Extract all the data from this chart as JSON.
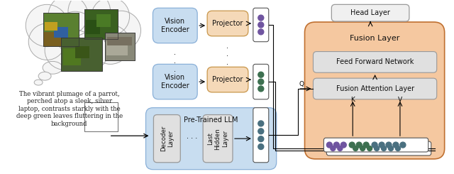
{
  "bg_color": "#ffffff",
  "cloud_fill": "#f5f5f5",
  "cloud_edge": "#aaaaaa",
  "blue_fill": "#c8ddf0",
  "blue_edge": "#8ab0d8",
  "orange_fill": "#f5d9b8",
  "orange_edge": "#c8964a",
  "gray_fill": "#e0e0e0",
  "gray_edge": "#999999",
  "fusion_fill": "#f5c8a0",
  "fusion_edge": "#c07030",
  "head_fill": "#f0f0f0",
  "head_edge": "#999999",
  "white": "#ffffff",
  "black": "#111111",
  "purple": "#7055a0",
  "green": "#3d7050",
  "teal": "#4a7080",
  "embed_edge": "#555555",
  "caption_text": "The vibrant plumage of a parrot,\nperched atop a sleek, silver\nlaptop, contrasts starkly with the\ndeep green leaves fluttering in the\nbackground",
  "ve_text": "Vision\nEncoder",
  "proj_text": "Projector",
  "llm_text": "Pre-Trained LLM",
  "dec_text": "Decoder\nLayer",
  "lhl_text": "Last\nHidden\nLayer",
  "fusion_text": "Fusion Layer",
  "ffn_text": "Feed Forward Network",
  "fal_text": "Fusion Attention Layer",
  "head_text": "Head Layer"
}
